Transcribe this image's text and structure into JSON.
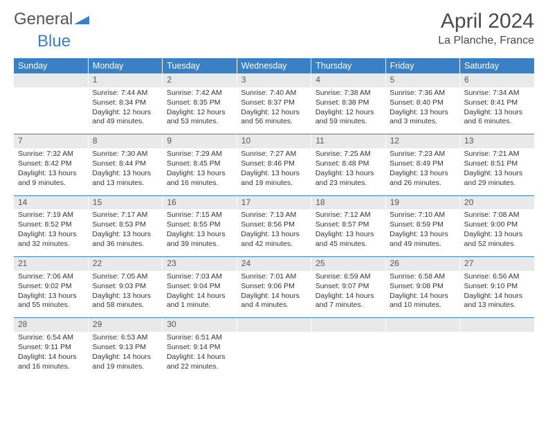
{
  "brand": {
    "part1": "General",
    "part2": "Blue"
  },
  "title": {
    "month": "April 2024",
    "location": "La Planche, France"
  },
  "colors": {
    "accent": "#3b7fc4",
    "header_text": "#ffffff",
    "daynum_bg": "#e9e9e9",
    "text": "#333333",
    "bg": "#ffffff"
  },
  "dayHeaders": [
    "Sunday",
    "Monday",
    "Tuesday",
    "Wednesday",
    "Thursday",
    "Friday",
    "Saturday"
  ],
  "weeks": [
    {
      "dayNums": [
        "",
        "1",
        "2",
        "3",
        "4",
        "5",
        "6"
      ],
      "details": [
        {
          "sunrise": "",
          "sunset": "",
          "daylight": ""
        },
        {
          "sunrise": "Sunrise: 7:44 AM",
          "sunset": "Sunset: 8:34 PM",
          "daylight": "Daylight: 12 hours and 49 minutes."
        },
        {
          "sunrise": "Sunrise: 7:42 AM",
          "sunset": "Sunset: 8:35 PM",
          "daylight": "Daylight: 12 hours and 53 minutes."
        },
        {
          "sunrise": "Sunrise: 7:40 AM",
          "sunset": "Sunset: 8:37 PM",
          "daylight": "Daylight: 12 hours and 56 minutes."
        },
        {
          "sunrise": "Sunrise: 7:38 AM",
          "sunset": "Sunset: 8:38 PM",
          "daylight": "Daylight: 12 hours and 59 minutes."
        },
        {
          "sunrise": "Sunrise: 7:36 AM",
          "sunset": "Sunset: 8:40 PM",
          "daylight": "Daylight: 13 hours and 3 minutes."
        },
        {
          "sunrise": "Sunrise: 7:34 AM",
          "sunset": "Sunset: 8:41 PM",
          "daylight": "Daylight: 13 hours and 6 minutes."
        }
      ]
    },
    {
      "dayNums": [
        "7",
        "8",
        "9",
        "10",
        "11",
        "12",
        "13"
      ],
      "details": [
        {
          "sunrise": "Sunrise: 7:32 AM",
          "sunset": "Sunset: 8:42 PM",
          "daylight": "Daylight: 13 hours and 9 minutes."
        },
        {
          "sunrise": "Sunrise: 7:30 AM",
          "sunset": "Sunset: 8:44 PM",
          "daylight": "Daylight: 13 hours and 13 minutes."
        },
        {
          "sunrise": "Sunrise: 7:29 AM",
          "sunset": "Sunset: 8:45 PM",
          "daylight": "Daylight: 13 hours and 16 minutes."
        },
        {
          "sunrise": "Sunrise: 7:27 AM",
          "sunset": "Sunset: 8:46 PM",
          "daylight": "Daylight: 13 hours and 19 minutes."
        },
        {
          "sunrise": "Sunrise: 7:25 AM",
          "sunset": "Sunset: 8:48 PM",
          "daylight": "Daylight: 13 hours and 23 minutes."
        },
        {
          "sunrise": "Sunrise: 7:23 AM",
          "sunset": "Sunset: 8:49 PM",
          "daylight": "Daylight: 13 hours and 26 minutes."
        },
        {
          "sunrise": "Sunrise: 7:21 AM",
          "sunset": "Sunset: 8:51 PM",
          "daylight": "Daylight: 13 hours and 29 minutes."
        }
      ]
    },
    {
      "dayNums": [
        "14",
        "15",
        "16",
        "17",
        "18",
        "19",
        "20"
      ],
      "details": [
        {
          "sunrise": "Sunrise: 7:19 AM",
          "sunset": "Sunset: 8:52 PM",
          "daylight": "Daylight: 13 hours and 32 minutes."
        },
        {
          "sunrise": "Sunrise: 7:17 AM",
          "sunset": "Sunset: 8:53 PM",
          "daylight": "Daylight: 13 hours and 36 minutes."
        },
        {
          "sunrise": "Sunrise: 7:15 AM",
          "sunset": "Sunset: 8:55 PM",
          "daylight": "Daylight: 13 hours and 39 minutes."
        },
        {
          "sunrise": "Sunrise: 7:13 AM",
          "sunset": "Sunset: 8:56 PM",
          "daylight": "Daylight: 13 hours and 42 minutes."
        },
        {
          "sunrise": "Sunrise: 7:12 AM",
          "sunset": "Sunset: 8:57 PM",
          "daylight": "Daylight: 13 hours and 45 minutes."
        },
        {
          "sunrise": "Sunrise: 7:10 AM",
          "sunset": "Sunset: 8:59 PM",
          "daylight": "Daylight: 13 hours and 49 minutes."
        },
        {
          "sunrise": "Sunrise: 7:08 AM",
          "sunset": "Sunset: 9:00 PM",
          "daylight": "Daylight: 13 hours and 52 minutes."
        }
      ]
    },
    {
      "dayNums": [
        "21",
        "22",
        "23",
        "24",
        "25",
        "26",
        "27"
      ],
      "details": [
        {
          "sunrise": "Sunrise: 7:06 AM",
          "sunset": "Sunset: 9:02 PM",
          "daylight": "Daylight: 13 hours and 55 minutes."
        },
        {
          "sunrise": "Sunrise: 7:05 AM",
          "sunset": "Sunset: 9:03 PM",
          "daylight": "Daylight: 13 hours and 58 minutes."
        },
        {
          "sunrise": "Sunrise: 7:03 AM",
          "sunset": "Sunset: 9:04 PM",
          "daylight": "Daylight: 14 hours and 1 minute."
        },
        {
          "sunrise": "Sunrise: 7:01 AM",
          "sunset": "Sunset: 9:06 PM",
          "daylight": "Daylight: 14 hours and 4 minutes."
        },
        {
          "sunrise": "Sunrise: 6:59 AM",
          "sunset": "Sunset: 9:07 PM",
          "daylight": "Daylight: 14 hours and 7 minutes."
        },
        {
          "sunrise": "Sunrise: 6:58 AM",
          "sunset": "Sunset: 9:08 PM",
          "daylight": "Daylight: 14 hours and 10 minutes."
        },
        {
          "sunrise": "Sunrise: 6:56 AM",
          "sunset": "Sunset: 9:10 PM",
          "daylight": "Daylight: 14 hours and 13 minutes."
        }
      ]
    },
    {
      "dayNums": [
        "28",
        "29",
        "30",
        "",
        "",
        "",
        ""
      ],
      "details": [
        {
          "sunrise": "Sunrise: 6:54 AM",
          "sunset": "Sunset: 9:11 PM",
          "daylight": "Daylight: 14 hours and 16 minutes."
        },
        {
          "sunrise": "Sunrise: 6:53 AM",
          "sunset": "Sunset: 9:13 PM",
          "daylight": "Daylight: 14 hours and 19 minutes."
        },
        {
          "sunrise": "Sunrise: 6:51 AM",
          "sunset": "Sunset: 9:14 PM",
          "daylight": "Daylight: 14 hours and 22 minutes."
        },
        {
          "sunrise": "",
          "sunset": "",
          "daylight": ""
        },
        {
          "sunrise": "",
          "sunset": "",
          "daylight": ""
        },
        {
          "sunrise": "",
          "sunset": "",
          "daylight": ""
        },
        {
          "sunrise": "",
          "sunset": "",
          "daylight": ""
        }
      ]
    }
  ]
}
